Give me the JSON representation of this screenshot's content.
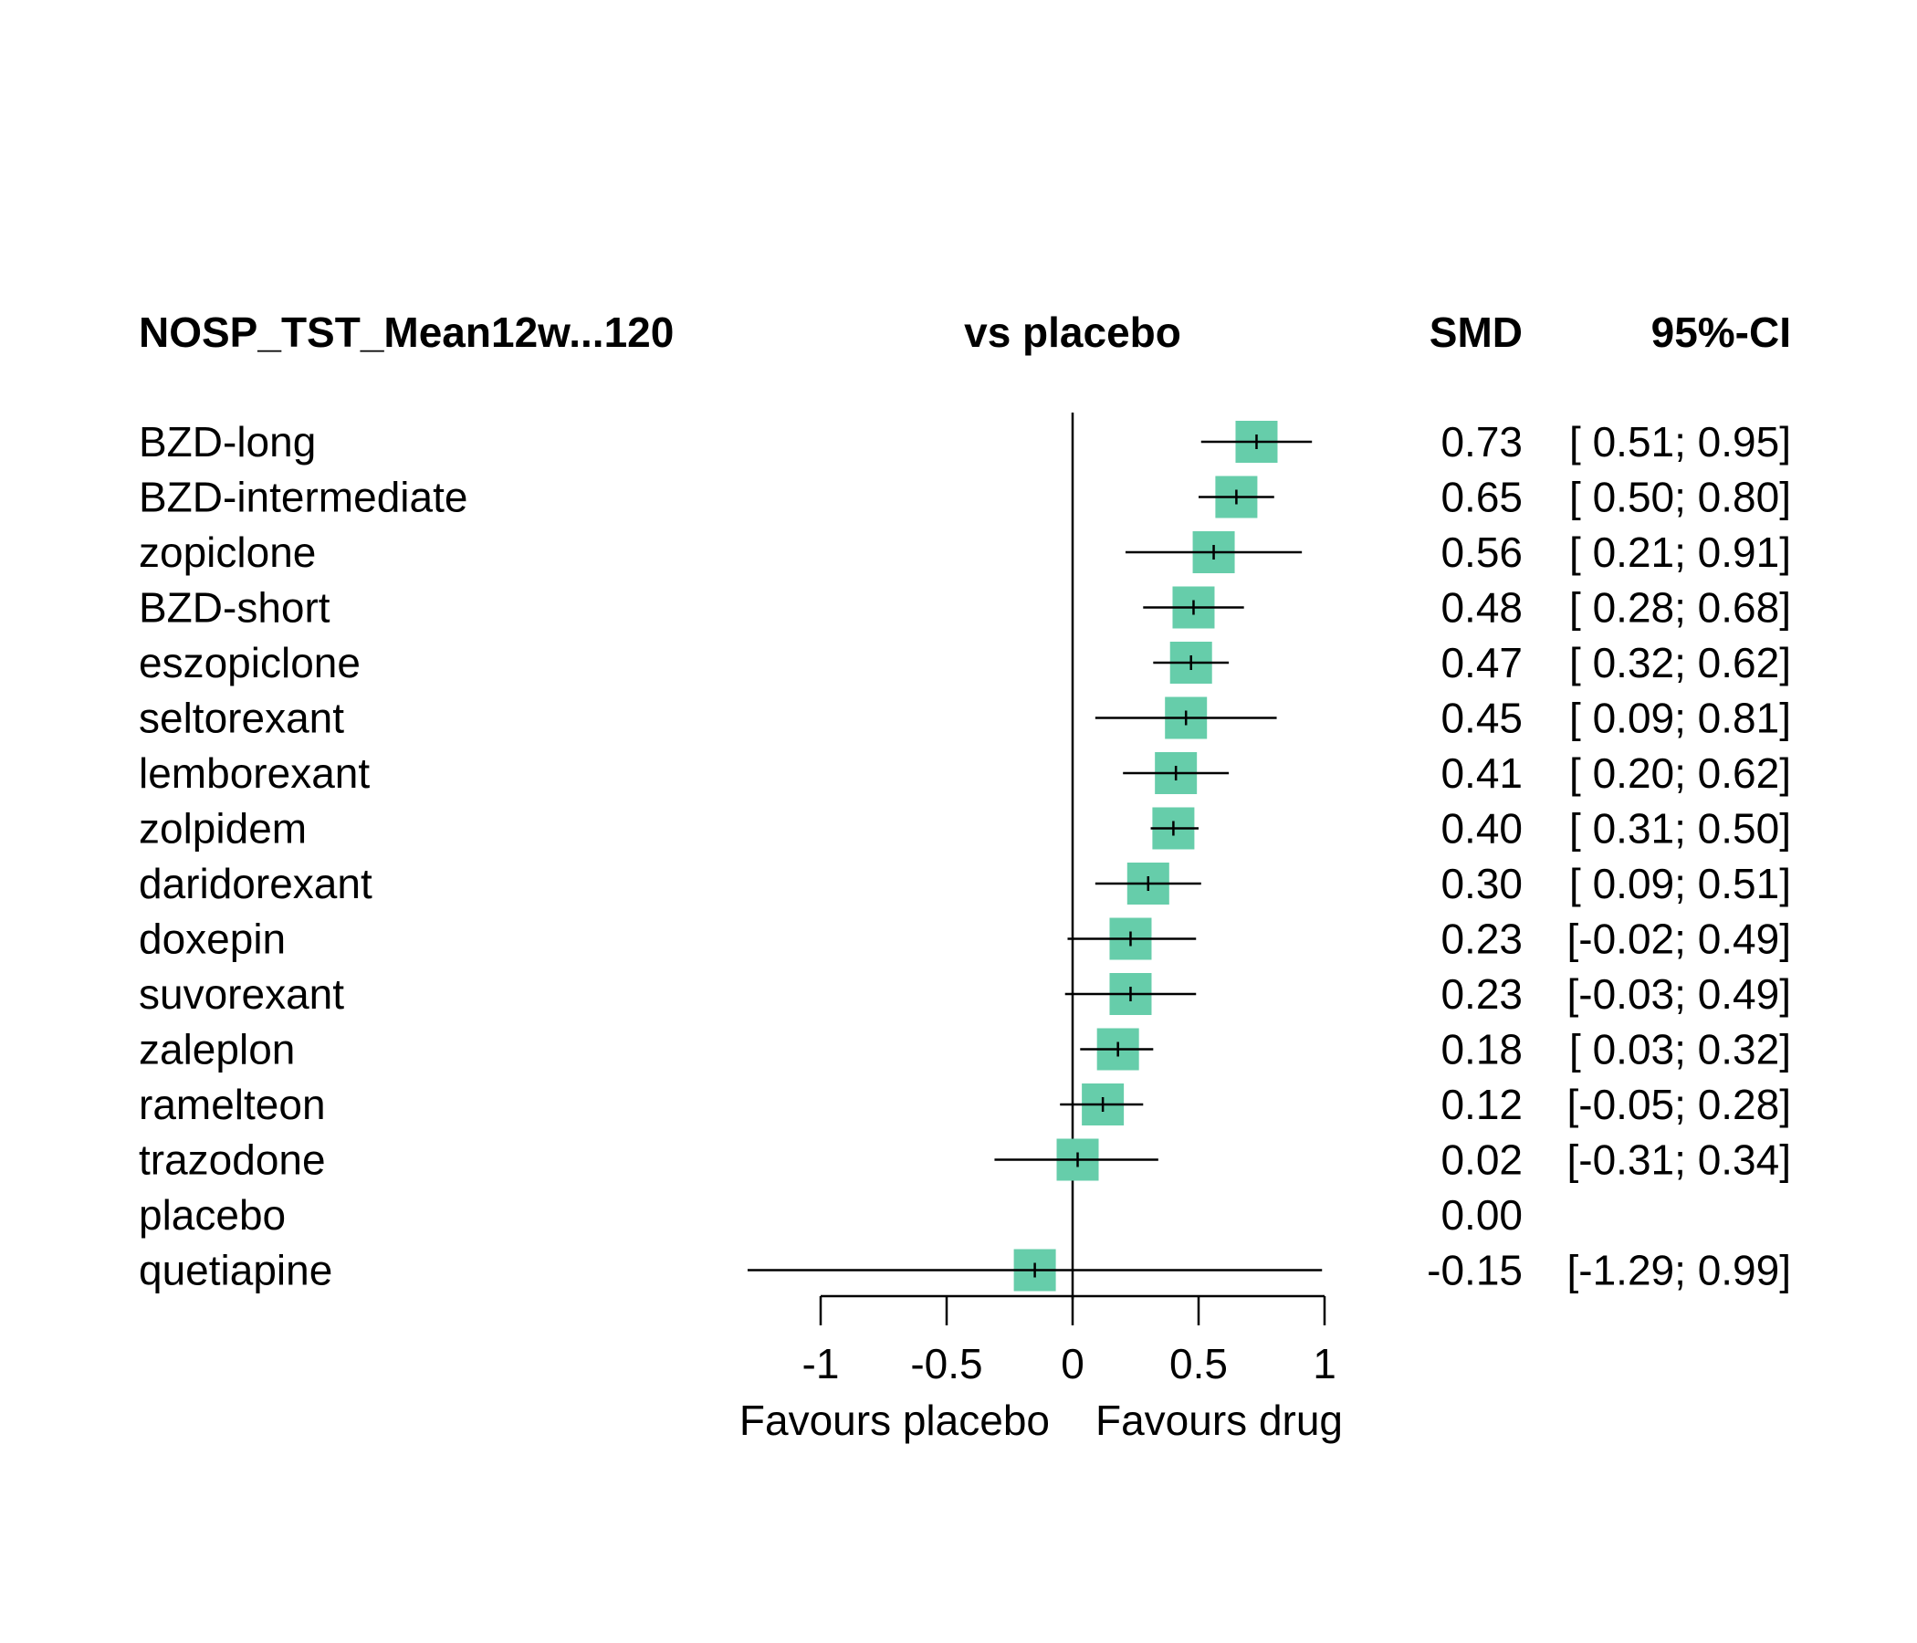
{
  "chart_data": {
    "type": "forest",
    "headers": {
      "comparison": "NOSP_TST_Mean12w...120",
      "reference": "vs placebo",
      "effect": "SMD",
      "ci": "95%-CI"
    },
    "rows": [
      {
        "name": "BZD-long",
        "smd": 0.73,
        "lower": 0.51,
        "upper": 0.95,
        "smd_text": "0.73",
        "ci_text": "[ 0.51; 0.95]"
      },
      {
        "name": "BZD-intermediate",
        "smd": 0.65,
        "lower": 0.5,
        "upper": 0.8,
        "smd_text": "0.65",
        "ci_text": "[ 0.50; 0.80]"
      },
      {
        "name": "zopiclone",
        "smd": 0.56,
        "lower": 0.21,
        "upper": 0.91,
        "smd_text": "0.56",
        "ci_text": "[ 0.21; 0.91]"
      },
      {
        "name": "BZD-short",
        "smd": 0.48,
        "lower": 0.28,
        "upper": 0.68,
        "smd_text": "0.48",
        "ci_text": "[ 0.28; 0.68]"
      },
      {
        "name": "eszopiclone",
        "smd": 0.47,
        "lower": 0.32,
        "upper": 0.62,
        "smd_text": "0.47",
        "ci_text": "[ 0.32; 0.62]"
      },
      {
        "name": "seltorexant",
        "smd": 0.45,
        "lower": 0.09,
        "upper": 0.81,
        "smd_text": "0.45",
        "ci_text": "[ 0.09; 0.81]"
      },
      {
        "name": "lemborexant",
        "smd": 0.41,
        "lower": 0.2,
        "upper": 0.62,
        "smd_text": "0.41",
        "ci_text": "[ 0.20; 0.62]"
      },
      {
        "name": "zolpidem",
        "smd": 0.4,
        "lower": 0.31,
        "upper": 0.5,
        "smd_text": "0.40",
        "ci_text": "[ 0.31; 0.50]"
      },
      {
        "name": "daridorexant",
        "smd": 0.3,
        "lower": 0.09,
        "upper": 0.51,
        "smd_text": "0.30",
        "ci_text": "[ 0.09; 0.51]"
      },
      {
        "name": "doxepin",
        "smd": 0.23,
        "lower": -0.02,
        "upper": 0.49,
        "smd_text": "0.23",
        "ci_text": "[-0.02; 0.49]"
      },
      {
        "name": "suvorexant",
        "smd": 0.23,
        "lower": -0.03,
        "upper": 0.49,
        "smd_text": "0.23",
        "ci_text": "[-0.03; 0.49]"
      },
      {
        "name": "zaleplon",
        "smd": 0.18,
        "lower": 0.03,
        "upper": 0.32,
        "smd_text": "0.18",
        "ci_text": "[ 0.03; 0.32]"
      },
      {
        "name": "ramelteon",
        "smd": 0.12,
        "lower": -0.05,
        "upper": 0.28,
        "smd_text": "0.12",
        "ci_text": "[-0.05; 0.28]"
      },
      {
        "name": "trazodone",
        "smd": 0.02,
        "lower": -0.31,
        "upper": 0.34,
        "smd_text": "0.02",
        "ci_text": "[-0.31; 0.34]"
      },
      {
        "name": "placebo",
        "smd": null,
        "lower": null,
        "upper": null,
        "smd_text": "0.00",
        "ci_text": ""
      },
      {
        "name": "quetiapine",
        "smd": -0.15,
        "lower": -1.29,
        "upper": 0.99,
        "smd_text": "-0.15",
        "ci_text": "[-1.29; 0.99]"
      }
    ],
    "xlim": [
      -1,
      1
    ],
    "x_ticks": [
      -1,
      -0.5,
      0,
      0.5,
      1
    ],
    "x_tick_labels": [
      "-1",
      "-0.5",
      "0",
      "0.5",
      "1"
    ],
    "xlabel_left": "Favours placebo",
    "xlabel_right": "Favours drug",
    "reference_line": 0,
    "marker_color": "#66cdaa",
    "line_color": "#000000"
  }
}
